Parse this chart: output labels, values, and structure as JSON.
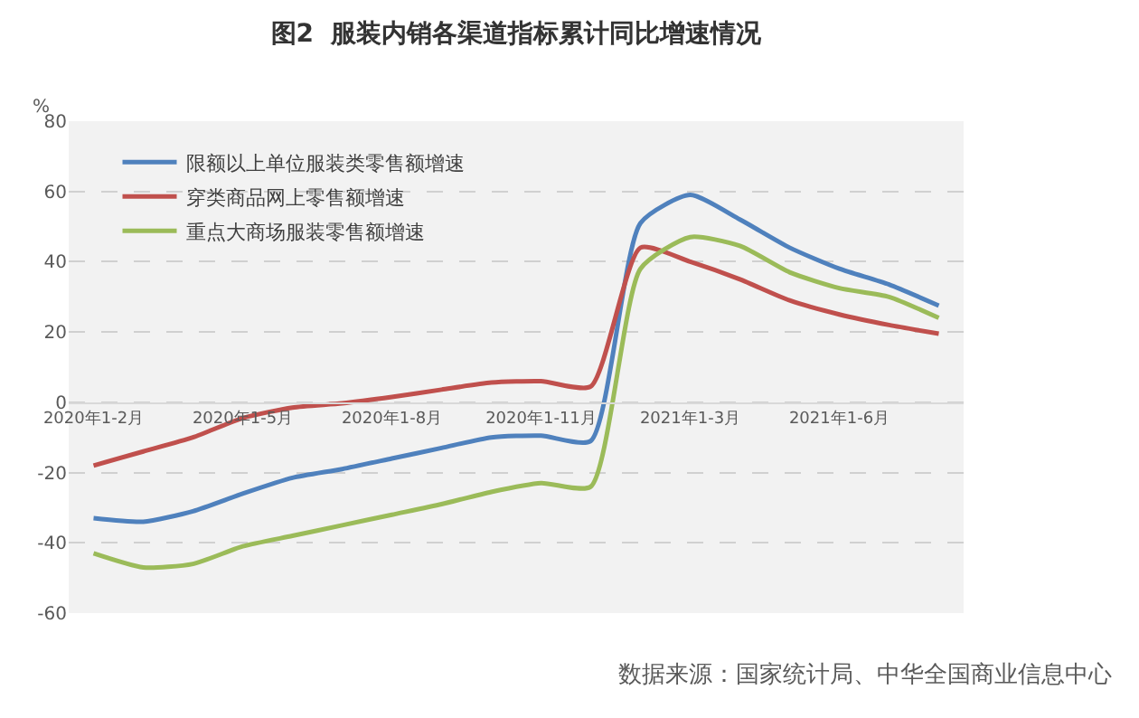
{
  "chart_data": {
    "type": "line",
    "title": "图2  服装内销各渠道指标累计同比增速情况",
    "ylabel": "%",
    "categories": [
      "2020年1-2月",
      null,
      null,
      "2020年1-5月",
      null,
      null,
      "2020年1-8月",
      null,
      null,
      "2020年1-11月",
      null,
      null,
      "2021年1-3月",
      null,
      null,
      "2021年1-6月",
      null,
      null
    ],
    "series": [
      {
        "name": "限额以上单位服装类零售额增速",
        "color": "#4f81bd",
        "values": [
          -33,
          -34,
          -31,
          -26,
          -21.5,
          -19,
          -16,
          -13,
          -10,
          -9.5,
          -11,
          51,
          59,
          52,
          44,
          38,
          33.5,
          27.5
        ]
      },
      {
        "name": "穿类商品网上零售额增速",
        "color": "#c0504d",
        "values": [
          -18,
          -14,
          -10,
          -4.5,
          -1.5,
          -0.3,
          1.5,
          3.6,
          5.6,
          6,
          4.5,
          44,
          40,
          35,
          29,
          25,
          22,
          19.5
        ]
      },
      {
        "name": "重点大商场服装零售额增速",
        "color": "#9bbb59",
        "values": [
          -43,
          -47,
          -46,
          -41,
          -38,
          -35,
          -32,
          -29,
          -25.5,
          -23,
          -24,
          38,
          47,
          44.5,
          37,
          32.5,
          30,
          24
        ]
      }
    ],
    "ylim": [
      -60,
      80
    ],
    "yticks": [
      -60,
      -40,
      -20,
      0,
      20,
      40,
      60,
      80
    ],
    "grid": "y",
    "legend": "top left",
    "line_style": "solid",
    "marker": "none",
    "annotations": [
      "数据来源：国家统计局、中华全国商业信息中心"
    ]
  }
}
